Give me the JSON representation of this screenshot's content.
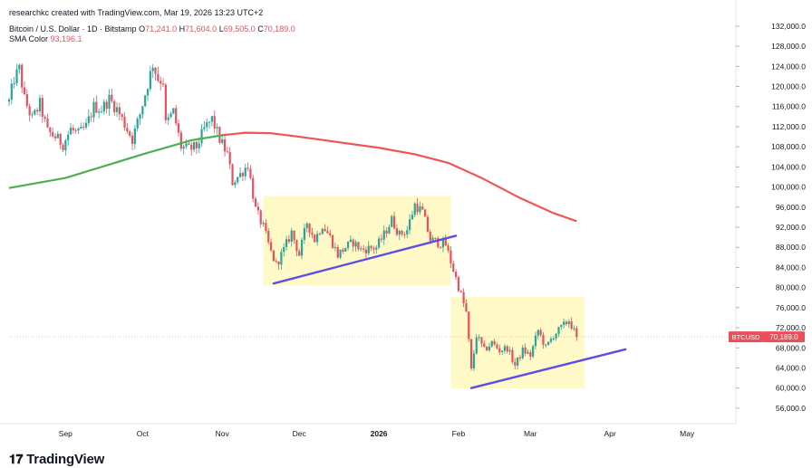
{
  "header": {
    "credit": "researchkc created with TradingView.com, Mar 19, 2026 13:23 UTC+2",
    "symbol_name": "Bitcoin / U.S. Dollar · 1D · Bitstamp",
    "ohlc": {
      "open_label": "O",
      "open": "71,241.0",
      "high_label": "H",
      "high": "71,604.0",
      "low_label": "L",
      "low": "69,505.0",
      "close_label": "C",
      "close": "70,189.0"
    },
    "sma_label": "SMA Color",
    "sma_value": "93,196.1"
  },
  "brand": {
    "logo_icon": "tradingview-logo-icon",
    "text": "TradingView"
  },
  "colors": {
    "up": "#26a69a",
    "down": "#e8505b",
    "sma200": "#f05454",
    "sma50": "#4caf50",
    "trendline": "#5b4de8",
    "box": "#fff9c4"
  },
  "chart_data": {
    "type": "candlestick",
    "symbol": "BTCUSD",
    "timeframe": "1D",
    "y_ticks": [
      "132,000.0",
      "128,000.0",
      "124,000.0",
      "120,000.0",
      "116,000.0",
      "112,000.0",
      "108,000.0",
      "104,000.0",
      "100,000.0",
      "96,000.0",
      "92,000.0",
      "88,000.0",
      "84,000.0",
      "80,000.0",
      "76,000.0",
      "72,000.0",
      "68,000.0",
      "64,000.0",
      "60,000.0",
      "56,000.0"
    ],
    "y_tick_values": [
      132000,
      128000,
      124000,
      120000,
      116000,
      112000,
      108000,
      104000,
      100000,
      96000,
      92000,
      88000,
      84000,
      80000,
      76000,
      72000,
      68000,
      64000,
      60000,
      56000
    ],
    "ylim": [
      54000,
      133600
    ],
    "x_ticks": [
      {
        "label": "Sep",
        "date": "2025-09-01",
        "bold": false
      },
      {
        "label": "Oct",
        "date": "2025-10-01",
        "bold": false
      },
      {
        "label": "Nov",
        "date": "2025-11-01",
        "bold": false
      },
      {
        "label": "Dec",
        "date": "2025-12-01",
        "bold": false
      },
      {
        "label": "2026",
        "date": "2026-01-01",
        "bold": true
      },
      {
        "label": "Feb",
        "date": "2026-02-01",
        "bold": false
      },
      {
        "label": "Mar",
        "date": "2026-03-01",
        "bold": false
      },
      {
        "label": "Apr",
        "date": "2026-04-01",
        "bold": false
      },
      {
        "label": "May",
        "date": "2026-05-01",
        "bold": false
      }
    ],
    "xlim": [
      "2025-08-10",
      "2026-05-20"
    ],
    "last_price_label": "BTCUSD",
    "last_price": "70,189.0",
    "last_price_value": 70189,
    "price_path": [
      [
        "2025-08-10",
        117000
      ],
      [
        "2025-08-12",
        121500
      ],
      [
        "2025-08-14",
        123500
      ],
      [
        "2025-08-16",
        117500
      ],
      [
        "2025-08-19",
        113500
      ],
      [
        "2025-08-22",
        116500
      ],
      [
        "2025-08-25",
        111000
      ],
      [
        "2025-08-28",
        110000
      ],
      [
        "2025-08-31",
        108500
      ],
      [
        "2025-09-03",
        111500
      ],
      [
        "2025-09-06",
        110500
      ],
      [
        "2025-09-09",
        112000
      ],
      [
        "2025-09-12",
        116000
      ],
      [
        "2025-09-15",
        115500
      ],
      [
        "2025-09-18",
        117500
      ],
      [
        "2025-09-21",
        115500
      ],
      [
        "2025-09-24",
        112500
      ],
      [
        "2025-09-27",
        109500
      ],
      [
        "2025-09-30",
        114500
      ],
      [
        "2025-10-03",
        120500
      ],
      [
        "2025-10-05",
        124500
      ],
      [
        "2025-10-07",
        121500
      ],
      [
        "2025-10-09",
        121000
      ],
      [
        "2025-10-10",
        112500
      ],
      [
        "2025-10-13",
        115000
      ],
      [
        "2025-10-16",
        108000
      ],
      [
        "2025-10-19",
        107500
      ],
      [
        "2025-10-22",
        108000
      ],
      [
        "2025-10-25",
        111500
      ],
      [
        "2025-10-28",
        113500
      ],
      [
        "2025-10-31",
        109500
      ],
      [
        "2025-11-03",
        106500
      ],
      [
        "2025-11-05",
        101000
      ],
      [
        "2025-11-08",
        102500
      ],
      [
        "2025-11-11",
        104500
      ],
      [
        "2025-11-14",
        95500
      ],
      [
        "2025-11-17",
        92000
      ],
      [
        "2025-11-20",
        87000
      ],
      [
        "2025-11-22",
        84500
      ],
      [
        "2025-11-25",
        87500
      ],
      [
        "2025-11-28",
        91000
      ],
      [
        "2025-12-01",
        86500
      ],
      [
        "2025-12-04",
        93000
      ],
      [
        "2025-12-07",
        89500
      ],
      [
        "2025-12-10",
        92500
      ],
      [
        "2025-12-13",
        90000
      ],
      [
        "2025-12-16",
        86500
      ],
      [
        "2025-12-19",
        88000
      ],
      [
        "2025-12-22",
        89000
      ],
      [
        "2025-12-25",
        87500
      ],
      [
        "2025-12-28",
        87800
      ],
      [
        "2025-12-31",
        88000
      ],
      [
        "2026-01-03",
        90500
      ],
      [
        "2026-01-06",
        93500
      ],
      [
        "2026-01-09",
        90500
      ],
      [
        "2026-01-12",
        91500
      ],
      [
        "2026-01-15",
        96500
      ],
      [
        "2026-01-18",
        95000
      ],
      [
        "2026-01-21",
        89500
      ],
      [
        "2026-01-24",
        89000
      ],
      [
        "2026-01-27",
        88500
      ],
      [
        "2026-01-30",
        83500
      ],
      [
        "2026-02-02",
        78500
      ],
      [
        "2026-02-04",
        75000
      ],
      [
        "2026-02-06",
        63500
      ],
      [
        "2026-02-08",
        70500
      ],
      [
        "2026-02-11",
        67500
      ],
      [
        "2026-02-14",
        69000
      ],
      [
        "2026-02-17",
        67500
      ],
      [
        "2026-02-20",
        68000
      ],
      [
        "2026-02-23",
        64500
      ],
      [
        "2026-02-26",
        67500
      ],
      [
        "2026-03-01",
        66500
      ],
      [
        "2026-03-04",
        71500
      ],
      [
        "2026-03-07",
        68000
      ],
      [
        "2026-03-10",
        70500
      ],
      [
        "2026-03-13",
        72000
      ],
      [
        "2026-03-16",
        73500
      ],
      [
        "2026-03-19",
        70189
      ]
    ],
    "sma200": [
      [
        "2025-08-10",
        99800
      ],
      [
        "2025-09-01",
        101800
      ],
      [
        "2025-10-01",
        106500
      ],
      [
        "2025-10-20",
        109300
      ],
      [
        "2025-11-01",
        110300
      ],
      [
        "2025-11-10",
        110800
      ],
      [
        "2025-11-20",
        110700
      ],
      [
        "2025-12-01",
        110000
      ],
      [
        "2025-12-15",
        109000
      ],
      [
        "2026-01-01",
        107800
      ],
      [
        "2026-01-15",
        106500
      ],
      [
        "2026-01-28",
        104800
      ],
      [
        "2026-02-10",
        101800
      ],
      [
        "2026-02-25",
        97800
      ],
      [
        "2026-03-10",
        94800
      ],
      [
        "2026-03-19",
        93196
      ]
    ],
    "sma50_candles": [
      [
        "2025-10-20",
        109300
      ],
      [
        "2025-11-01",
        110300
      ]
    ],
    "trendlines": [
      {
        "from": [
          "2025-11-21",
          80800
        ],
        "to": [
          "2026-01-31",
          90300
        ]
      },
      {
        "from": [
          "2026-02-06",
          60000
        ],
        "to": [
          "2026-04-07",
          67700
        ]
      }
    ],
    "consolidation_boxes": [
      {
        "from": "2025-11-17",
        "to": "2026-01-29",
        "low": 80400,
        "high": 98200
      },
      {
        "from": "2026-01-29",
        "to": "2026-03-22",
        "low": 59900,
        "high": 78100
      }
    ]
  }
}
